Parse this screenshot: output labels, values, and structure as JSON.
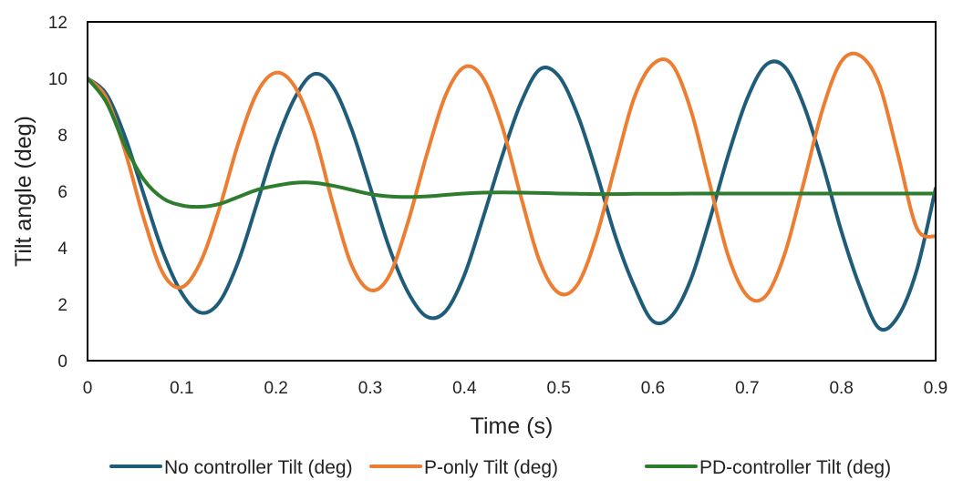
{
  "chart_data": {
    "type": "line",
    "xlabel": "Time (s)",
    "ylabel": "Tilt angle (deg)",
    "xlim": [
      0,
      0.9
    ],
    "ylim": [
      0,
      12
    ],
    "xticks": [
      0,
      0.1,
      0.2,
      0.3,
      0.4,
      0.5,
      0.6,
      0.7,
      0.8,
      0.9
    ],
    "yticks": [
      0,
      2,
      4,
      6,
      8,
      10,
      12
    ],
    "xtick_labels": [
      "0",
      "0.1",
      "0.2",
      "0.3",
      "0.4",
      "0.5",
      "0.6",
      "0.7",
      "0.8",
      "0.9"
    ],
    "ytick_labels": [
      "0",
      "2",
      "4",
      "6",
      "8",
      "10",
      "12"
    ],
    "grid": false,
    "legend_position": "bottom",
    "series": [
      {
        "name": "No controller Tilt (deg)",
        "color": "#1f5c7a",
        "x": [
          0,
          0.02,
          0.04,
          0.06,
          0.08,
          0.1,
          0.12,
          0.14,
          0.16,
          0.18,
          0.2,
          0.22,
          0.24,
          0.26,
          0.28,
          0.3,
          0.32,
          0.34,
          0.36,
          0.38,
          0.4,
          0.42,
          0.44,
          0.46,
          0.48,
          0.5,
          0.52,
          0.54,
          0.56,
          0.58,
          0.6,
          0.62,
          0.64,
          0.66,
          0.68,
          0.7,
          0.72,
          0.74,
          0.76,
          0.78,
          0.8,
          0.82,
          0.84,
          0.86,
          0.88,
          0.9
        ],
        "y": [
          10.0,
          9.44,
          7.91,
          5.85,
          3.84,
          2.39,
          1.7,
          2.08,
          3.51,
          5.59,
          7.7,
          9.31,
          10.15,
          9.72,
          8.22,
          6.14,
          4.02,
          2.43,
          1.56,
          1.75,
          3.04,
          5.09,
          7.25,
          9.14,
          10.32,
          10.08,
          8.71,
          6.68,
          4.42,
          2.65,
          1.4,
          1.59,
          2.86,
          4.96,
          7.29,
          9.28,
          10.48,
          10.4,
          9.05,
          6.96,
          4.58,
          2.58,
          1.15,
          1.56,
          3.21,
          6.1
        ]
      },
      {
        "name": "P-only Tilt (deg)",
        "color": "#ed7d31",
        "x": [
          0,
          0.02,
          0.04,
          0.06,
          0.08,
          0.1,
          0.12,
          0.14,
          0.16,
          0.18,
          0.2,
          0.22,
          0.24,
          0.26,
          0.28,
          0.3,
          0.32,
          0.34,
          0.36,
          0.38,
          0.4,
          0.42,
          0.44,
          0.46,
          0.48,
          0.5,
          0.52,
          0.54,
          0.56,
          0.58,
          0.6,
          0.62,
          0.64,
          0.66,
          0.68,
          0.7,
          0.72,
          0.74,
          0.76,
          0.78,
          0.8,
          0.82,
          0.84,
          0.86,
          0.88,
          0.9
        ],
        "y": [
          10.0,
          9.3,
          7.4,
          5.0,
          3.1,
          2.6,
          3.5,
          5.4,
          7.7,
          9.5,
          10.2,
          9.7,
          8.1,
          5.6,
          3.4,
          2.5,
          3.0,
          4.9,
          7.3,
          9.4,
          10.4,
          10.0,
          8.3,
          5.8,
          3.5,
          2.4,
          2.7,
          4.4,
          6.9,
          9.3,
          10.5,
          10.5,
          8.9,
          6.3,
          3.7,
          2.3,
          2.3,
          3.8,
          6.3,
          8.9,
          10.6,
          10.8,
          9.8,
          7.3,
          4.7,
          4.4
        ]
      },
      {
        "name": "PD-controller Tilt (deg)",
        "color": "#2e7d2e",
        "x": [
          0,
          0.02,
          0.04,
          0.06,
          0.08,
          0.1,
          0.12,
          0.14,
          0.16,
          0.18,
          0.2,
          0.22,
          0.24,
          0.26,
          0.28,
          0.3,
          0.32,
          0.34,
          0.36,
          0.38,
          0.4,
          0.42,
          0.44,
          0.46,
          0.48,
          0.5,
          0.52,
          0.54,
          0.56,
          0.58,
          0.6,
          0.62,
          0.64,
          0.66,
          0.68,
          0.7,
          0.72,
          0.74,
          0.76,
          0.78,
          0.8,
          0.82,
          0.84,
          0.86,
          0.88,
          0.9
        ],
        "y": [
          10.0,
          9.15,
          7.6,
          6.4,
          5.75,
          5.5,
          5.45,
          5.55,
          5.8,
          6.05,
          6.2,
          6.3,
          6.3,
          6.2,
          6.05,
          5.9,
          5.82,
          5.8,
          5.82,
          5.87,
          5.92,
          5.95,
          5.96,
          5.95,
          5.94,
          5.92,
          5.91,
          5.9,
          5.9,
          5.91,
          5.91,
          5.91,
          5.92,
          5.92,
          5.92,
          5.92,
          5.92,
          5.92,
          5.92,
          5.92,
          5.92,
          5.92,
          5.92,
          5.92,
          5.92,
          5.92
        ]
      }
    ]
  }
}
